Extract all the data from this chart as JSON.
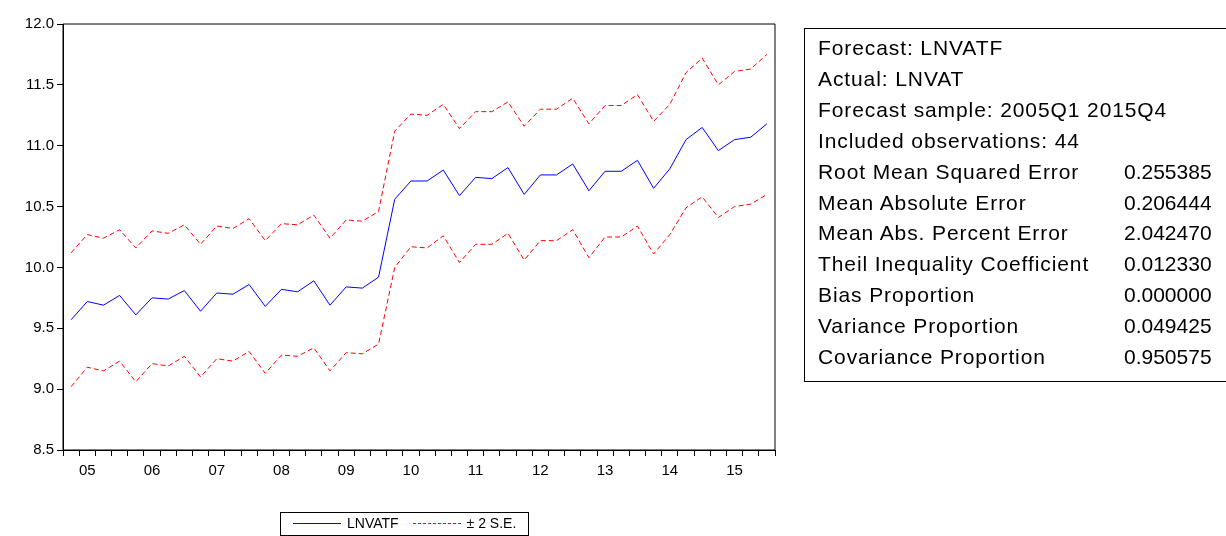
{
  "chart_data": [
    {
      "type": "line",
      "categories": [
        null,
        "05",
        null,
        null,
        null,
        "06",
        null,
        null,
        null,
        "07",
        null,
        null,
        null,
        "08",
        null,
        null,
        null,
        "09",
        null,
        null,
        null,
        "10",
        null,
        null,
        null,
        "11",
        null,
        null,
        null,
        "12",
        null,
        null,
        null,
        "13",
        null,
        null,
        null,
        "14",
        null,
        null,
        null,
        "15",
        null,
        null
      ],
      "ylim": [
        8.5,
        12.0
      ],
      "yticks": [
        {
          "value": 8.5,
          "label": "8.5"
        },
        {
          "value": 9,
          "label": "9.0"
        },
        {
          "value": 9.5,
          "label": "9.5"
        },
        {
          "value": 10,
          "label": "10.0"
        },
        {
          "value": 10.5,
          "label": "10.5"
        },
        {
          "value": 11,
          "label": "11.0"
        },
        {
          "value": 11.5,
          "label": "11.5"
        },
        {
          "value": 12,
          "label": "12.0"
        }
      ],
      "grid": false,
      "legend": "bottom",
      "series": [
        {
          "name": "LNVATF",
          "color": "#0000ff",
          "line_style": "solid",
          "values": [
            9.57,
            9.72,
            9.69,
            9.77,
            9.61,
            9.75,
            9.74,
            9.81,
            9.64,
            9.79,
            9.78,
            9.86,
            9.68,
            9.82,
            9.8,
            9.89,
            9.69,
            9.84,
            9.83,
            9.92,
            10.56,
            10.71,
            10.71,
            10.8,
            10.59,
            10.74,
            10.73,
            10.82,
            10.6,
            10.76,
            10.76,
            10.85,
            10.63,
            10.79,
            10.79,
            10.88,
            10.65,
            10.81,
            11.05,
            11.15,
            10.96,
            11.05,
            11.07,
            11.18
          ]
        },
        {
          "name": "± 2 S.E.",
          "color": "#ff0000",
          "line_style": "dashed",
          "values": [
            10.12,
            10.27,
            10.24,
            10.31,
            10.16,
            10.3,
            10.28,
            10.35,
            10.19,
            10.34,
            10.32,
            10.4,
            10.22,
            10.36,
            10.35,
            10.43,
            10.24,
            10.39,
            10.38,
            10.46,
            11.12,
            11.26,
            11.25,
            11.34,
            11.14,
            11.28,
            11.28,
            11.36,
            11.16,
            11.3,
            11.3,
            11.39,
            11.18,
            11.33,
            11.33,
            11.42,
            11.2,
            11.34,
            11.6,
            11.72,
            11.5,
            11.61,
            11.63,
            11.75
          ]
        },
        {
          "color": "#ff0000",
          "line_style": "dashed",
          "values": [
            9.02,
            9.18,
            9.15,
            9.23,
            9.06,
            9.21,
            9.19,
            9.27,
            9.1,
            9.25,
            9.23,
            9.31,
            9.13,
            9.28,
            9.27,
            9.34,
            9.15,
            9.3,
            9.29,
            9.37,
            10.0,
            10.17,
            10.16,
            10.26,
            10.04,
            10.19,
            10.19,
            10.28,
            10.06,
            10.22,
            10.22,
            10.31,
            10.08,
            10.25,
            10.25,
            10.34,
            10.11,
            10.27,
            10.49,
            10.58,
            10.41,
            10.5,
            10.52,
            10.6
          ]
        }
      ]
    },
    {
      "type": "other",
      "categories": [
        "Forecast: LNVATF",
        "Actual: LNVAT",
        "Forecast sample: 2005Q1 2015Q4",
        "Included observations: 44",
        "Root Mean Squared Error",
        "Mean Absolute Error",
        "Mean Abs. Percent Error",
        "Theil Inequality Coefficient",
        "Bias Proportion",
        "Variance Proportion",
        "Covariance Proportion"
      ],
      "value_labels": [
        null,
        null,
        null,
        null,
        "0.255385",
        "0.206444",
        "2.042470",
        "0.012330",
        "0.000000",
        "0.049425",
        "0.950575"
      ]
    }
  ]
}
